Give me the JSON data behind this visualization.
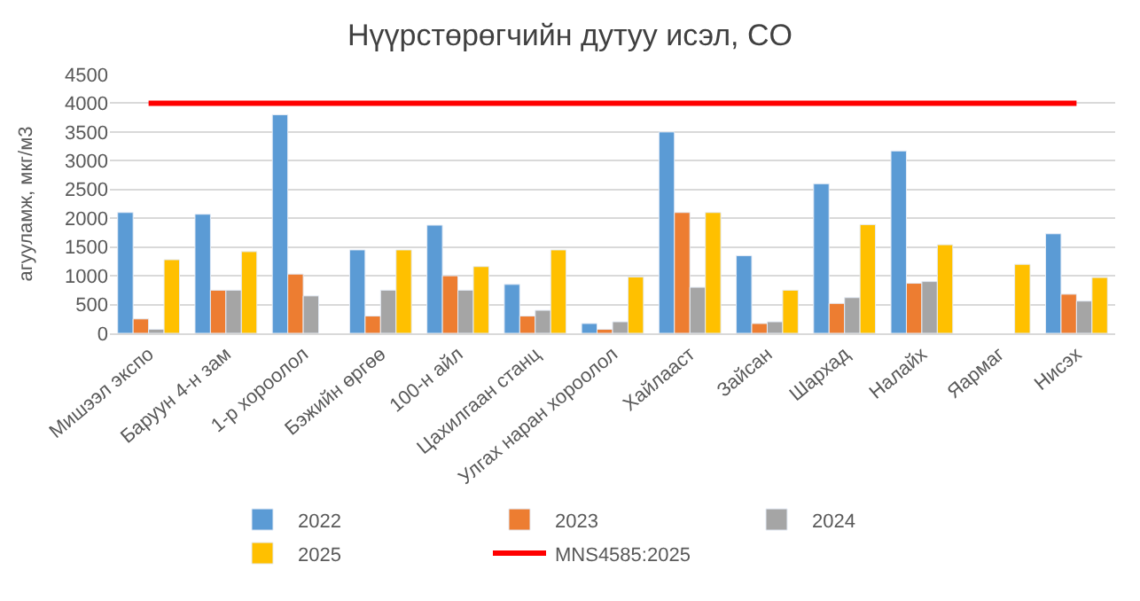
{
  "chart_data": {
    "type": "bar",
    "title": "Нүүрстөрөгчийн дутуу исэл, CO",
    "ylabel": "агууламж, мкг/м3",
    "categories": [
      "Мишээл экспо",
      "Баруун 4-н зам",
      "1-р хороолол",
      "Бэжийн өргөө",
      "100-н айл",
      "Цахилгаан станц",
      "Улгах наран хороолол",
      "Хайлааст",
      "Зайсан",
      "Шархад",
      "Налайх",
      "Яармаг",
      "Нисэх"
    ],
    "series": [
      {
        "name": "2022",
        "color": "#5b9bd5",
        "values": [
          2100,
          2070,
          3800,
          1450,
          1880,
          850,
          170,
          3500,
          1350,
          2600,
          3170,
          null,
          1730
        ]
      },
      {
        "name": "2023",
        "color": "#ed7d31",
        "values": [
          250,
          750,
          1030,
          300,
          1000,
          300,
          70,
          2100,
          170,
          520,
          870,
          null,
          680
        ]
      },
      {
        "name": "2024",
        "color": "#a5a5a5",
        "values": [
          70,
          750,
          650,
          750,
          750,
          400,
          200,
          800,
          200,
          620,
          900,
          null,
          560
        ]
      },
      {
        "name": "2025",
        "color": "#ffc000",
        "values": [
          1280,
          1420,
          null,
          1450,
          1160,
          1450,
          980,
          2100,
          750,
          1890,
          1540,
          1200,
          970
        ]
      },
      {
        "name": "MNS4585:2025",
        "color": "#ff0000",
        "type": "line",
        "values": [
          4000,
          4000,
          4000,
          4000,
          4000,
          4000,
          4000,
          4000,
          4000,
          4000,
          4000,
          4000,
          4000
        ]
      }
    ],
    "ylim": [
      0,
      4500
    ],
    "yticks": [
      0,
      500,
      1000,
      1500,
      2000,
      2500,
      3000,
      3500,
      4000,
      4500
    ],
    "grid": "y",
    "legend": "bottom",
    "marker": "none"
  }
}
